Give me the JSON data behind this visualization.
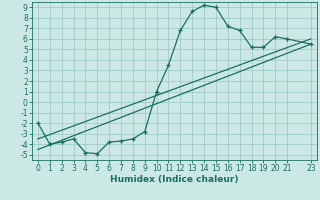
{
  "xlabel": "Humidex (Indice chaleur)",
  "bg_color": "#cce8e4",
  "grid_color": "#a0ccc8",
  "line_color": "#1a7060",
  "xdata": [
    0,
    1,
    2,
    3,
    4,
    5,
    6,
    7,
    8,
    9,
    10,
    11,
    12,
    13,
    14,
    15,
    16,
    17,
    18,
    19,
    20,
    21,
    23
  ],
  "ydata": [
    -2.0,
    -4.0,
    -3.8,
    -3.5,
    -4.8,
    -4.9,
    -3.8,
    -3.7,
    -3.5,
    -2.8,
    1.0,
    3.5,
    6.8,
    8.6,
    9.2,
    9.0,
    7.2,
    6.8,
    5.2,
    5.2,
    6.2,
    6.0,
    5.5
  ],
  "ref_line1_x": [
    0,
    23
  ],
  "ref_line1_y": [
    -4.5,
    5.5
  ],
  "ref_line2_x": [
    0,
    23
  ],
  "ref_line2_y": [
    -3.5,
    6.0
  ],
  "xlim": [
    -0.5,
    23.5
  ],
  "ylim": [
    -5.5,
    9.5
  ],
  "yticks": [
    -5,
    -4,
    -3,
    -2,
    -1,
    0,
    1,
    2,
    3,
    4,
    5,
    6,
    7,
    8,
    9
  ],
  "xticks": [
    0,
    1,
    2,
    3,
    4,
    5,
    6,
    7,
    8,
    9,
    10,
    11,
    12,
    13,
    14,
    15,
    16,
    17,
    18,
    19,
    20,
    21,
    23
  ],
  "tick_fontsize": 5.5,
  "xlabel_fontsize": 6.5
}
